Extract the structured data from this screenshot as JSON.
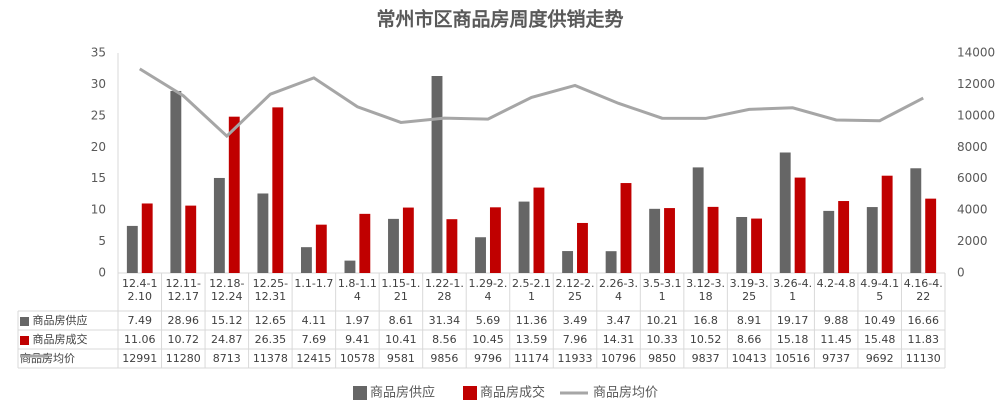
{
  "chart_data": {
    "type": "bar-line",
    "title": "常州市区商品房周度供销走势",
    "categories": [
      "12.4-12.10",
      "12.11-12.17",
      "12.18-12.24",
      "12.25-12.31",
      "1.1-1.7",
      "1.8-1.14",
      "1.15-1.21",
      "1.22-1.28",
      "1.29-2.4",
      "2.5-2.11",
      "2.12-2.25",
      "2.26-3.4",
      "3.5-3.11",
      "3.12-3.18",
      "3.19-3.25",
      "3.26-4.1",
      "4.2-4.8",
      "4.9-4.15",
      "4.16-4.22"
    ],
    "series": [
      {
        "name": "商品房供应",
        "type": "bar",
        "color": "#666666",
        "values": [
          7.49,
          28.96,
          15.12,
          12.65,
          4.11,
          1.97,
          8.61,
          31.34,
          5.69,
          11.36,
          3.49,
          3.47,
          10.21,
          16.8,
          8.91,
          19.17,
          9.88,
          10.49,
          16.66
        ]
      },
      {
        "name": "商品房成交",
        "type": "bar",
        "color": "#c00000",
        "values": [
          11.06,
          10.72,
          24.87,
          26.35,
          7.69,
          9.41,
          10.41,
          8.56,
          10.45,
          13.59,
          7.96,
          14.31,
          10.33,
          10.52,
          8.66,
          15.18,
          11.45,
          15.48,
          11.83
        ]
      },
      {
        "name": "商品房均价",
        "type": "line",
        "axis": "y2",
        "color": "#a6a6a6",
        "values": [
          12991,
          11280,
          8713,
          11378,
          12415,
          10578,
          9581,
          9856,
          9796,
          11174,
          11933,
          10796,
          9850,
          9837,
          10413,
          10516,
          9737,
          9692,
          11130
        ]
      }
    ],
    "ylim": [
      0,
      35
    ],
    "yticks": [
      0,
      5,
      10,
      15,
      20,
      25,
      30,
      35
    ],
    "y2lim": [
      0,
      14000
    ],
    "y2ticks": [
      0,
      2000,
      4000,
      6000,
      8000,
      10000,
      12000,
      14000
    ]
  }
}
